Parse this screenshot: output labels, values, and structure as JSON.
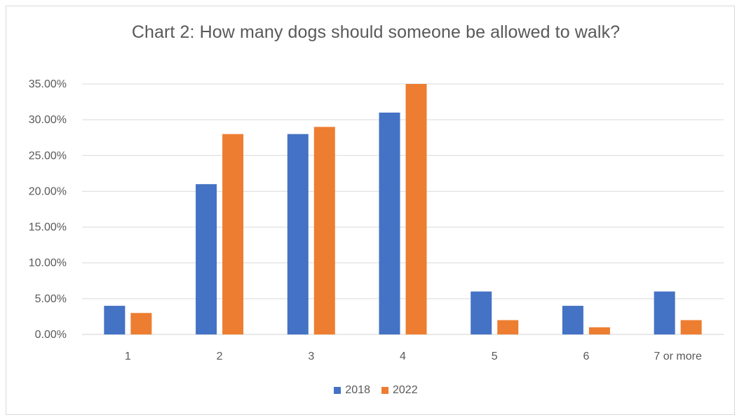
{
  "chart_data": {
    "type": "bar",
    "title": "Chart 2: How many dogs should someone be allowed to walk?",
    "xlabel": "",
    "ylabel": "",
    "categories": [
      "1",
      "2",
      "3",
      "4",
      "5",
      "6",
      "7 or more"
    ],
    "series": [
      {
        "name": "2018",
        "color": "#4472C4",
        "values": [
          0.04,
          0.21,
          0.28,
          0.31,
          0.06,
          0.04,
          0.06
        ]
      },
      {
        "name": "2022",
        "color": "#ED7D31",
        "values": [
          0.03,
          0.28,
          0.29,
          0.35,
          0.02,
          0.01,
          0.02
        ]
      }
    ],
    "ylim": [
      0,
      0.35
    ],
    "yticks": [
      0,
      0.05,
      0.1,
      0.15,
      0.2,
      0.25,
      0.3,
      0.35
    ],
    "ytick_labels": [
      "0.00%",
      "5.00%",
      "10.00%",
      "15.00%",
      "20.00%",
      "25.00%",
      "30.00%",
      "35.00%"
    ],
    "grid": true,
    "legend_position": "bottom"
  }
}
